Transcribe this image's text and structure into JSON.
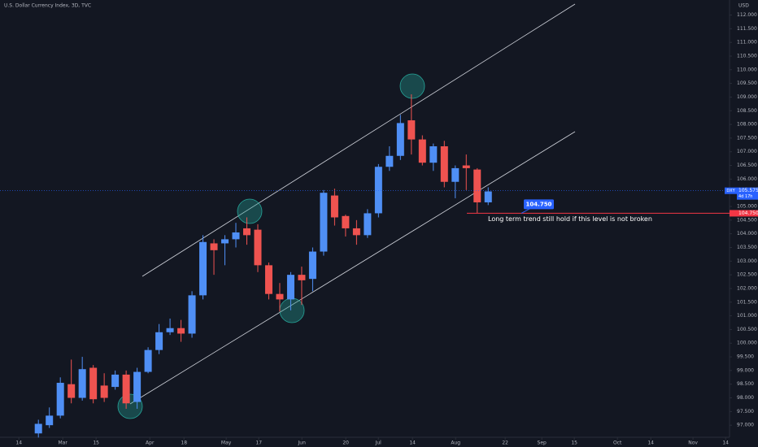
{
  "chart_data": {
    "type": "candlestick",
    "title": "U.S. Dollar Currency Index, 3D, TVC",
    "currency": "USD",
    "up_color": "#4f8ff5",
    "down_color": "#ef5350",
    "x": [
      0,
      1,
      2,
      3,
      4,
      5,
      6,
      7,
      8,
      9,
      10,
      11,
      12,
      13,
      14,
      15,
      16,
      17,
      18,
      19,
      20,
      21,
      22,
      23,
      24,
      25,
      26,
      27,
      28,
      29,
      30,
      31,
      32,
      33,
      34,
      35,
      36,
      37,
      38,
      39,
      40,
      41
    ],
    "open": [
      96.7,
      97.0,
      97.35,
      98.5,
      98.0,
      99.1,
      98.45,
      98.4,
      98.85,
      97.85,
      98.95,
      99.75,
      100.4,
      100.55,
      100.35,
      101.75,
      103.65,
      103.65,
      103.8,
      104.2,
      104.15,
      102.85,
      101.8,
      101.6,
      102.5,
      102.35,
      103.35,
      105.4,
      104.65,
      104.2,
      103.95,
      104.75,
      106.45,
      106.85,
      108.15,
      107.45,
      106.6,
      107.2,
      105.9,
      106.5,
      106.35,
      105.15
    ],
    "high": [
      97.2,
      97.65,
      98.75,
      99.4,
      99.5,
      99.2,
      98.9,
      99.0,
      99.0,
      99.1,
      99.85,
      100.7,
      100.9,
      100.85,
      101.9,
      103.95,
      103.8,
      103.95,
      104.4,
      104.6,
      104.35,
      102.95,
      102.2,
      102.6,
      102.8,
      103.5,
      105.6,
      105.65,
      104.7,
      104.5,
      104.9,
      106.55,
      107.2,
      108.35,
      109.1,
      107.6,
      107.3,
      107.4,
      106.5,
      106.9,
      106.4,
      105.7
    ],
    "low": [
      96.55,
      96.9,
      97.25,
      97.8,
      97.9,
      97.8,
      97.85,
      98.3,
      97.6,
      97.6,
      98.9,
      99.6,
      100.3,
      100.05,
      100.2,
      101.6,
      102.5,
      102.85,
      103.5,
      103.6,
      102.6,
      101.6,
      101.15,
      101.2,
      101.4,
      101.9,
      103.2,
      104.3,
      103.9,
      103.6,
      103.85,
      104.6,
      106.3,
      106.7,
      106.9,
      106.5,
      106.3,
      105.7,
      105.3,
      105.6,
      104.75,
      105.05
    ],
    "close": [
      97.05,
      97.35,
      98.55,
      98.0,
      99.05,
      97.95,
      98.0,
      98.85,
      97.8,
      98.95,
      99.75,
      100.4,
      100.55,
      100.35,
      101.75,
      103.7,
      103.4,
      103.8,
      104.05,
      103.95,
      102.85,
      101.8,
      101.6,
      102.5,
      102.3,
      103.35,
      105.5,
      104.6,
      104.2,
      103.95,
      104.75,
      106.45,
      106.85,
      108.05,
      107.45,
      106.6,
      107.2,
      105.9,
      106.4,
      106.4,
      105.15,
      105.55
    ],
    "xlim": [
      -3.5,
      63
    ],
    "xticks": [
      {
        "value": -1.78,
        "label": "14"
      },
      {
        "value": 2.22,
        "label": "Mar"
      },
      {
        "value": 5.26,
        "label": "15"
      },
      {
        "value": 10.16,
        "label": "Apr"
      },
      {
        "value": 13.27,
        "label": "18"
      },
      {
        "value": 17.12,
        "label": "May"
      },
      {
        "value": 20.09,
        "label": "17"
      },
      {
        "value": 24.02,
        "label": "Jun"
      },
      {
        "value": 28.02,
        "label": "20"
      },
      {
        "value": 30.99,
        "label": "Jul"
      },
      {
        "value": 34.1,
        "label": "14"
      },
      {
        "value": 38.03,
        "label": "Aug"
      },
      {
        "value": 42.55,
        "label": "22"
      },
      {
        "value": 45.89,
        "label": "Sep"
      },
      {
        "value": 48.85,
        "label": "15"
      },
      {
        "value": 52.78,
        "label": "Oct"
      },
      {
        "value": 55.82,
        "label": "14"
      },
      {
        "value": 59.67,
        "label": "Nov"
      },
      {
        "value": 62.64,
        "label": "14"
      }
    ],
    "ylim": [
      96.5,
      112.55
    ],
    "yticks": [
      {
        "value": 97,
        "label": "97.000"
      },
      {
        "value": 97.5,
        "label": "97.500"
      },
      {
        "value": 98,
        "label": "98.000"
      },
      {
        "value": 98.5,
        "label": "98.500"
      },
      {
        "value": 99,
        "label": "99.000"
      },
      {
        "value": 99.5,
        "label": "99.500"
      },
      {
        "value": 100,
        "label": "100.000"
      },
      {
        "value": 100.5,
        "label": "100.500"
      },
      {
        "value": 101,
        "label": "101.000"
      },
      {
        "value": 101.5,
        "label": "101.500"
      },
      {
        "value": 102,
        "label": "102.000"
      },
      {
        "value": 102.5,
        "label": "102.500"
      },
      {
        "value": 103,
        "label": "103.000"
      },
      {
        "value": 103.5,
        "label": "103.500"
      },
      {
        "value": 104,
        "label": "104.000"
      },
      {
        "value": 104.5,
        "label": "104.500"
      },
      {
        "value": 105,
        "label": "105.000"
      },
      {
        "value": 105.5,
        "label": "105.500"
      },
      {
        "value": 106,
        "label": "106.000"
      },
      {
        "value": 106.5,
        "label": "106.500"
      },
      {
        "value": 107,
        "label": "107.000"
      },
      {
        "value": 107.5,
        "label": "107.500"
      },
      {
        "value": 108,
        "label": "108.000"
      },
      {
        "value": 108.5,
        "label": "108.500"
      },
      {
        "value": 109,
        "label": "109.000"
      },
      {
        "value": 109.5,
        "label": "109.500"
      },
      {
        "value": 110,
        "label": "110.000"
      },
      {
        "value": 110.5,
        "label": "110.500"
      },
      {
        "value": 111,
        "label": "111.000"
      },
      {
        "value": 111.5,
        "label": "111.500"
      },
      {
        "value": 112,
        "label": "112.000"
      }
    ],
    "last_price": {
      "symbol": "DXY",
      "value": 105.575,
      "label": "105.575",
      "countdown": "4d 17h",
      "color": "#2962ff"
    },
    "annotation": {
      "value": 104.75,
      "label": "104.750",
      "text": "Long term trend still hold if this level is not broken",
      "color": "#f23645"
    }
  }
}
